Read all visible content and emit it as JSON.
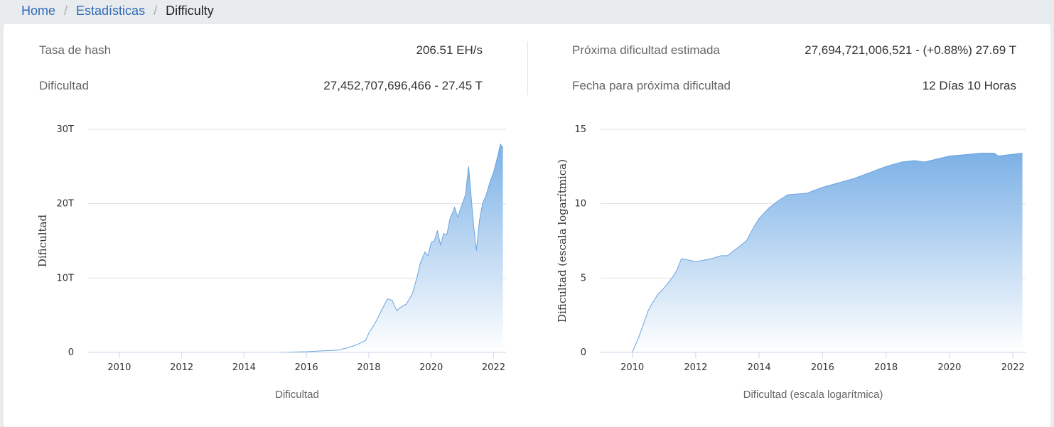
{
  "breadcrumb": {
    "home": "Home",
    "stats": "Estadísticas",
    "current": "Difficulty",
    "separator": "/"
  },
  "stats": {
    "hash_rate_label": "Tasa de hash",
    "hash_rate_value": "206.51 EH/s",
    "difficulty_label": "Dificultad",
    "difficulty_value": "27,452,707,696,466 - 27.45 T",
    "next_difficulty_label": "Próxima dificultad estimada",
    "next_difficulty_value": "27,694,721,006,521 - (+0.88%) 27.69 T",
    "next_date_label": "Fecha para próxima dificultad",
    "next_date_value": "12 Días 10 Horas"
  },
  "colors": {
    "accent": "#2e6ab3",
    "area_top": "#7cb1e6",
    "area_bottom": "#ffffff",
    "line": "#6aa4e0"
  },
  "chart_data": [
    {
      "type": "area",
      "xlabel": "Dificultad",
      "ylabel": "Dificultad",
      "xlim": [
        2009.0,
        2022.4
      ],
      "ylim": [
        0,
        30
      ],
      "y_unit": "T",
      "yticks": [
        0,
        10,
        20,
        30
      ],
      "ytick_labels": [
        "0",
        "10T",
        "20T",
        "30T"
      ],
      "xticks": [
        2010,
        2012,
        2014,
        2016,
        2018,
        2020,
        2022
      ],
      "grid": true,
      "series": [
        {
          "x": [
            2009.0,
            2010,
            2011,
            2012,
            2013,
            2014,
            2015,
            2016,
            2016.5,
            2017,
            2017.3,
            2017.6,
            2017.9,
            2018.0,
            2018.2,
            2018.4,
            2018.6,
            2018.75,
            2018.9,
            2019.0,
            2019.2,
            2019.4,
            2019.55,
            2019.65,
            2019.8,
            2019.9,
            2020.0,
            2020.1,
            2020.2,
            2020.3,
            2020.4,
            2020.5,
            2020.6,
            2020.75,
            2020.85,
            2021.0,
            2021.1,
            2021.2,
            2021.3,
            2021.35,
            2021.45,
            2021.55,
            2021.65,
            2021.75,
            2021.9,
            2022.0,
            2022.15,
            2022.22,
            2022.3
          ],
          "y": [
            0,
            0,
            0,
            0,
            0,
            0,
            0,
            0.1,
            0.2,
            0.3,
            0.6,
            1.0,
            1.6,
            2.6,
            3.9,
            5.6,
            7.2,
            7.0,
            5.6,
            6.0,
            6.5,
            7.9,
            10.2,
            12.0,
            13.5,
            13.0,
            14.8,
            15.0,
            16.4,
            14.4,
            16.0,
            15.8,
            17.9,
            19.5,
            18.2,
            20.0,
            21.2,
            25.0,
            20.0,
            17.5,
            13.7,
            17.8,
            20.1,
            21.0,
            23.1,
            24.2,
            26.7,
            28.0,
            27.5
          ]
        }
      ]
    },
    {
      "type": "area",
      "xlabel": "Dificultad (escala logarítmica)",
      "ylabel": "Dificultad (escala logarítmica)",
      "log_scale": true,
      "xlim": [
        2009.0,
        2022.4
      ],
      "ylim": [
        0,
        15
      ],
      "yticks": [
        0,
        5,
        10,
        15
      ],
      "xticks": [
        2010,
        2012,
        2014,
        2016,
        2018,
        2020,
        2022
      ],
      "grid": true,
      "series": [
        {
          "x": [
            2009.0,
            2010.0,
            2010.1,
            2010.2,
            2010.4,
            2010.5,
            2010.6,
            2010.8,
            2010.95,
            2011.1,
            2011.25,
            2011.4,
            2011.55,
            2011.8,
            2012.0,
            2012.5,
            2012.8,
            2013.0,
            2013.3,
            2013.6,
            2013.85,
            2014.0,
            2014.3,
            2014.6,
            2014.9,
            2015.5,
            2016.0,
            2016.5,
            2017.0,
            2017.5,
            2018.0,
            2018.5,
            2018.9,
            2019.2,
            2019.6,
            2020.0,
            2020.5,
            2021.0,
            2021.4,
            2021.55,
            2021.9,
            2022.3
          ],
          "y": [
            0,
            0,
            0.5,
            1.0,
            2.2,
            2.8,
            3.2,
            3.9,
            4.2,
            4.6,
            5.0,
            5.5,
            6.3,
            6.2,
            6.1,
            6.3,
            6.5,
            6.5,
            7.0,
            7.5,
            8.5,
            9.0,
            9.7,
            10.2,
            10.6,
            10.7,
            11.1,
            11.4,
            11.7,
            12.1,
            12.5,
            12.8,
            12.9,
            12.8,
            13.0,
            13.2,
            13.3,
            13.4,
            13.4,
            13.2,
            13.3,
            13.4
          ]
        }
      ]
    }
  ]
}
